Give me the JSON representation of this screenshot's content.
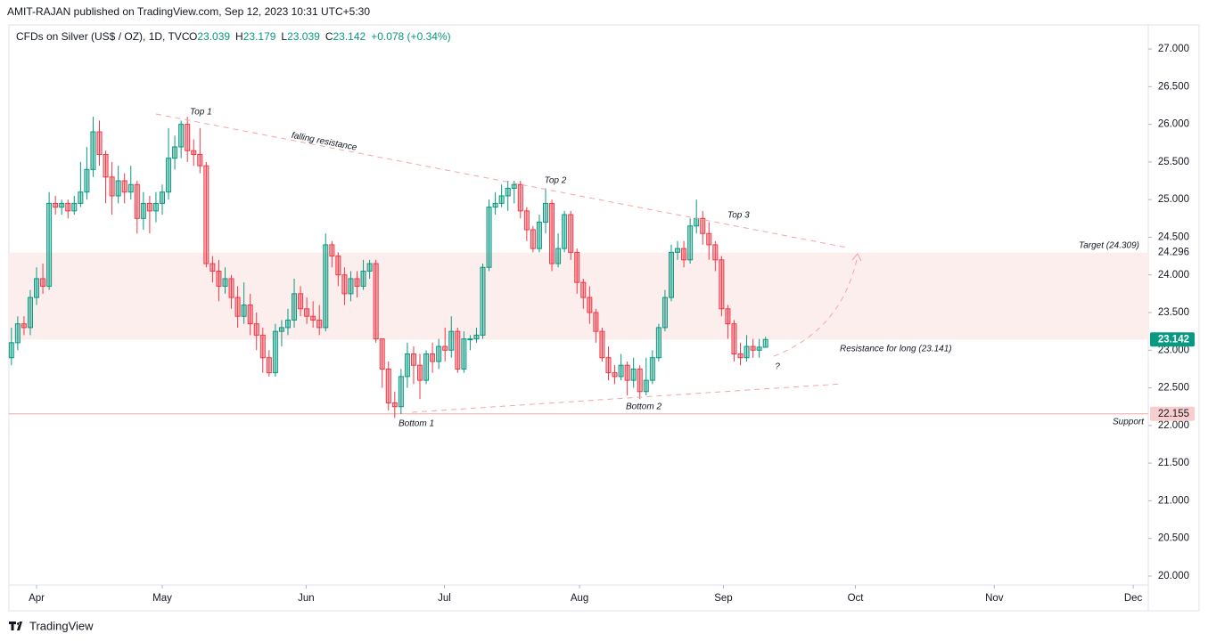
{
  "chart_data": {
    "type": "candlestick",
    "header": "AMIT-RAJAN published on TradingView.com, Sep 12, 2023 10:31 UTC+5:30",
    "title": "CFDs on Silver (US$ / OZ), 1D, TVC",
    "ohlc_labels": [
      "O",
      "H",
      "L",
      "C"
    ],
    "change": "+0.078 (+0.34%)",
    "up_color": "#089981",
    "down_color": "#f23645",
    "open": [
      22.9,
      23.1,
      23.35,
      23.3,
      23.7,
      23.95,
      23.85,
      24.95,
      24.9,
      24.95,
      24.85,
      24.95,
      25.1,
      25.4,
      25.9,
      25.6,
      25.3,
      25.05,
      25.25,
      25.1,
      25.2,
      24.75,
      24.95,
      24.85,
      24.95,
      25.1,
      25.55,
      25.7,
      26.0,
      25.65,
      25.6,
      25.45,
      24.15,
      24.05,
      23.85,
      23.95,
      23.7,
      23.45,
      23.6,
      23.35,
      23.2,
      22.9,
      22.7,
      23.25,
      23.3,
      23.4,
      23.75,
      23.55,
      23.45,
      23.4,
      23.3,
      24.4,
      24.25,
      24.0,
      23.75,
      23.95,
      23.85,
      24.05,
      24.15,
      23.15,
      22.75,
      22.3,
      22.25,
      22.65,
      22.95,
      22.8,
      22.6,
      22.95,
      22.85,
      23.05,
      23.0,
      23.25,
      22.75,
      23.15,
      23.15,
      23.2,
      24.1,
      24.9,
      24.95,
      25.05,
      25.15,
      25.2,
      24.85,
      24.6,
      24.35,
      24.7,
      24.95,
      24.15,
      24.35,
      24.8,
      24.3,
      23.9,
      23.7,
      23.5,
      23.25,
      22.9,
      22.7,
      22.65,
      22.8,
      22.6,
      22.75,
      22.45,
      22.6,
      22.9,
      23.3,
      23.7,
      24.3,
      24.35,
      24.2,
      24.65,
      24.75,
      24.55,
      24.4,
      24.2,
      23.55,
      23.35,
      22.95,
      22.9,
      23.05,
      23.0,
      23.039
    ],
    "high": [
      23.3,
      23.45,
      23.45,
      23.8,
      24.1,
      24.15,
      25.1,
      25.05,
      25.0,
      25.0,
      25.05,
      25.5,
      25.7,
      26.1,
      26.05,
      25.65,
      25.5,
      25.45,
      25.35,
      25.45,
      25.25,
      25.1,
      25.05,
      25.1,
      25.2,
      25.95,
      25.85,
      26.05,
      26.1,
      25.8,
      25.95,
      25.5,
      24.25,
      24.2,
      24.1,
      24.0,
      23.85,
      23.9,
      23.75,
      23.5,
      23.3,
      23.0,
      23.35,
      23.4,
      23.55,
      23.95,
      23.85,
      23.7,
      23.65,
      23.6,
      24.55,
      24.45,
      24.3,
      24.1,
      24.05,
      24.05,
      24.2,
      24.2,
      24.2,
      23.15,
      22.85,
      22.45,
      22.75,
      23.1,
      23.05,
      22.95,
      23.0,
      23.1,
      23.15,
      23.3,
      23.45,
      23.3,
      23.25,
      23.2,
      23.3,
      24.15,
      25.0,
      25.1,
      25.2,
      25.25,
      25.25,
      25.25,
      24.9,
      24.65,
      24.8,
      25.15,
      25.0,
      24.55,
      24.85,
      24.85,
      24.35,
      23.95,
      23.85,
      23.55,
      23.3,
      23.05,
      22.8,
      22.95,
      22.85,
      22.9,
      22.8,
      22.9,
      23.0,
      23.35,
      23.8,
      24.4,
      24.45,
      24.45,
      24.75,
      25.0,
      24.85,
      24.7,
      24.45,
      24.25,
      23.6,
      23.4,
      23.1,
      23.2,
      23.15,
      23.15,
      23.179
    ],
    "low": [
      22.8,
      23.0,
      23.2,
      23.2,
      23.6,
      23.75,
      23.8,
      24.8,
      24.8,
      24.75,
      24.8,
      24.9,
      25.0,
      25.3,
      25.45,
      24.95,
      24.8,
      24.95,
      24.95,
      25.0,
      24.55,
      24.6,
      24.55,
      24.7,
      24.8,
      25.0,
      25.4,
      25.55,
      25.5,
      25.45,
      25.35,
      24.1,
      23.9,
      23.65,
      23.75,
      23.55,
      23.3,
      23.35,
      23.2,
      23.0,
      22.7,
      22.65,
      22.65,
      23.05,
      23.2,
      23.3,
      23.45,
      23.35,
      23.3,
      23.2,
      23.25,
      24.1,
      23.85,
      23.6,
      23.65,
      23.7,
      23.8,
      23.95,
      23.1,
      22.5,
      22.2,
      22.1,
      22.15,
      22.5,
      22.55,
      22.35,
      22.55,
      22.7,
      22.75,
      22.85,
      22.9,
      22.7,
      22.7,
      23.0,
      23.1,
      23.15,
      24.05,
      24.8,
      24.9,
      24.85,
      24.95,
      24.75,
      24.45,
      24.3,
      24.3,
      24.55,
      24.05,
      24.1,
      24.3,
      24.2,
      23.75,
      23.55,
      23.35,
      23.1,
      22.85,
      22.6,
      22.55,
      22.6,
      22.4,
      22.5,
      22.35,
      22.4,
      22.55,
      22.85,
      23.25,
      23.65,
      24.2,
      24.1,
      24.15,
      24.55,
      24.4,
      24.2,
      24.05,
      23.45,
      23.15,
      22.85,
      22.8,
      22.85,
      22.9,
      22.9,
      23.039
    ],
    "close": [
      23.1,
      23.35,
      23.3,
      23.7,
      23.95,
      23.85,
      24.95,
      24.9,
      24.95,
      24.85,
      24.95,
      25.1,
      25.4,
      25.9,
      25.6,
      25.3,
      25.05,
      25.25,
      25.1,
      25.2,
      24.75,
      24.95,
      24.85,
      24.95,
      25.1,
      25.55,
      25.7,
      26.0,
      25.65,
      25.6,
      25.45,
      24.15,
      24.05,
      23.85,
      23.95,
      23.7,
      23.45,
      23.6,
      23.35,
      23.2,
      22.9,
      22.7,
      23.25,
      23.3,
      23.4,
      23.75,
      23.55,
      23.45,
      23.4,
      23.3,
      24.4,
      24.25,
      24.0,
      23.75,
      23.95,
      23.85,
      24.05,
      24.15,
      23.15,
      22.75,
      22.3,
      22.25,
      22.65,
      22.95,
      22.8,
      22.6,
      22.95,
      22.85,
      23.05,
      23.0,
      23.25,
      22.75,
      23.15,
      23.15,
      23.2,
      24.1,
      24.9,
      24.95,
      25.05,
      25.15,
      25.2,
      24.85,
      24.6,
      24.35,
      24.7,
      24.95,
      24.15,
      24.35,
      24.8,
      24.3,
      23.9,
      23.7,
      23.5,
      23.25,
      22.9,
      22.7,
      22.65,
      22.8,
      22.6,
      22.75,
      22.45,
      22.6,
      22.9,
      23.3,
      23.7,
      24.3,
      24.35,
      24.2,
      24.65,
      24.75,
      24.55,
      24.4,
      24.2,
      23.55,
      23.35,
      22.95,
      22.9,
      23.05,
      23.0,
      23.04,
      23.142
    ],
    "xlim": [
      -0.4,
      180.9
    ],
    "xticks": [
      {
        "value": 4.0,
        "label": "Apr"
      },
      {
        "value": 24.0,
        "label": "May"
      },
      {
        "value": 46.9,
        "label": "Jun"
      },
      {
        "value": 68.9,
        "label": "Jul"
      },
      {
        "value": 90.4,
        "label": "Aug"
      },
      {
        "value": 113.3,
        "label": "Sep"
      },
      {
        "value": 134.3,
        "label": "Oct"
      },
      {
        "value": 156.4,
        "label": "Nov"
      },
      {
        "value": 178.5,
        "label": "Dec"
      }
    ],
    "ylim": [
      19.55,
      27.32
    ],
    "yticks": [
      {
        "value": 20,
        "label": "20.000"
      },
      {
        "value": 20.5,
        "label": "20.500"
      },
      {
        "value": 21,
        "label": "21.000"
      },
      {
        "value": 21.5,
        "label": "21.500"
      },
      {
        "value": 22,
        "label": "22.000"
      },
      {
        "value": 22.5,
        "label": "22.500"
      },
      {
        "value": 23,
        "label": "23.000"
      },
      {
        "value": 23.5,
        "label": "23.500"
      },
      {
        "value": 24,
        "label": "24.000"
      },
      {
        "value": 24.5,
        "label": "24.500"
      },
      {
        "value": 25,
        "label": "25.000"
      },
      {
        "value": 25.5,
        "label": "25.500"
      },
      {
        "value": 26,
        "label": "26.000"
      },
      {
        "value": 26.5,
        "label": "26.500"
      },
      {
        "value": 27,
        "label": "27.000"
      }
    ],
    "zone": {
      "low": 23.141,
      "high": 24.296,
      "color": "#fdeeee"
    },
    "support": 22.155,
    "annotations": [
      "Top 1",
      "falling resistance",
      "Top 2",
      "Top 3",
      "Target (24.309)",
      "Resistance for long (23.141)",
      "?",
      "Bottom 1",
      "Bottom 2",
      "Support"
    ],
    "footer": "TradingView"
  }
}
